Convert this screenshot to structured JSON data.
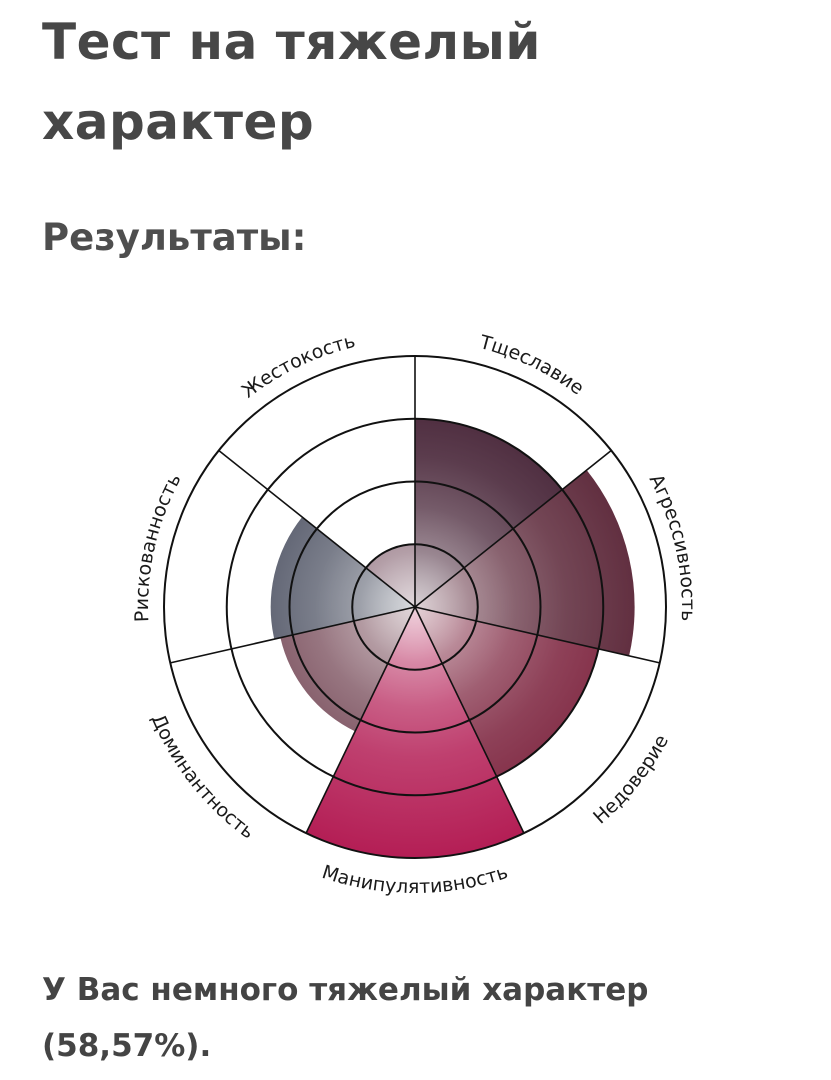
{
  "page": {
    "title": "Тест на тяжелый характер",
    "subtitle": "Результаты:",
    "result_text": "У Вас немного тяжелый характер (58,57%)."
  },
  "chart_data": {
    "type": "polar-area",
    "title": "",
    "rings": 4,
    "categories": [
      "Тщеславие",
      "Агрессивность",
      "Недоверие",
      "Манипулятивность",
      "Доминантность",
      "Рискованность",
      "Жестокость"
    ],
    "values": [
      3,
      3.5,
      3,
      4,
      2.2,
      2.3,
      1
    ],
    "max": 4,
    "colors": {
      "Тщеславие": "#3e1a2e",
      "Агрессивность": "#5a2537",
      "Недоверие": "#7a1f3a",
      "Манипулятивность": "#b41e55",
      "Доминантность": "#6e3f4e",
      "Рискованность": "#454a5c",
      "Жестокость": "#6f4758"
    }
  }
}
